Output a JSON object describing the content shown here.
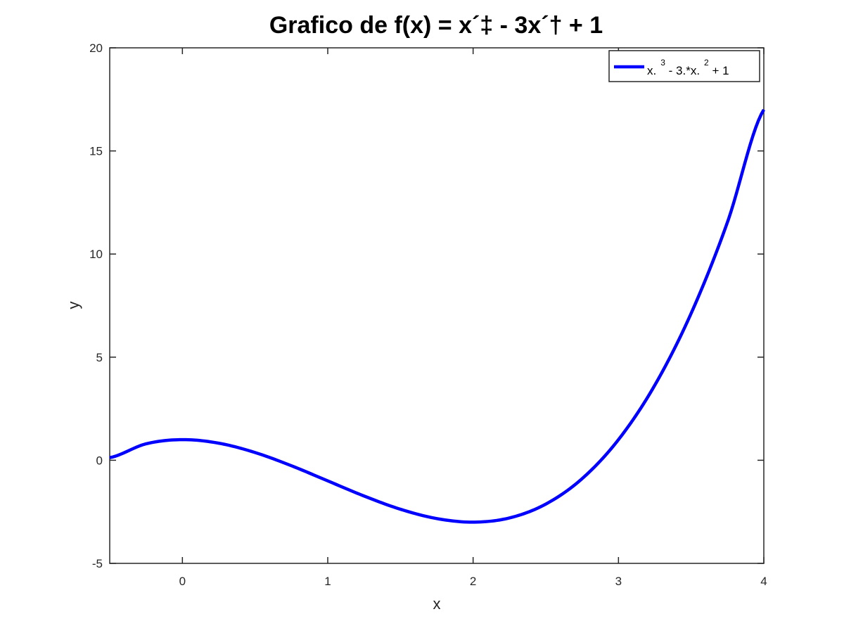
{
  "chart_data": {
    "type": "line",
    "title": "Grafico de f(x) = x´‡ - 3x´† + 1",
    "xlabel": "x",
    "ylabel": "y",
    "xlim": [
      -0.5,
      4
    ],
    "ylim": [
      -5,
      20
    ],
    "xticks": [
      0,
      1,
      2,
      3,
      4
    ],
    "yticks": [
      -5,
      0,
      5,
      10,
      15,
      20
    ],
    "grid": false,
    "legend_position": "top-right",
    "legend": {
      "parts": [
        {
          "text": "x.",
          "sup": false
        },
        {
          "text": "3",
          "sup": true
        },
        {
          "text": " - 3.*x.",
          "sup": false
        },
        {
          "text": "2",
          "sup": true
        },
        {
          "text": " + 1",
          "sup": false
        }
      ]
    },
    "series": [
      {
        "color": "#0000ff",
        "x": [
          -0.5,
          -0.25,
          0,
          0.25,
          0.5,
          0.75,
          1,
          1.25,
          1.5,
          1.75,
          2,
          2.25,
          2.5,
          2.75,
          3,
          3.25,
          3.5,
          3.75,
          4
        ],
        "y": [
          0.125,
          0.797,
          1.0,
          0.828,
          0.375,
          -0.266,
          -1.0,
          -1.734,
          -2.375,
          -2.828,
          -3.0,
          -2.797,
          -2.125,
          -0.891,
          1.0,
          3.641,
          7.125,
          11.547,
          17.0
        ]
      }
    ]
  }
}
